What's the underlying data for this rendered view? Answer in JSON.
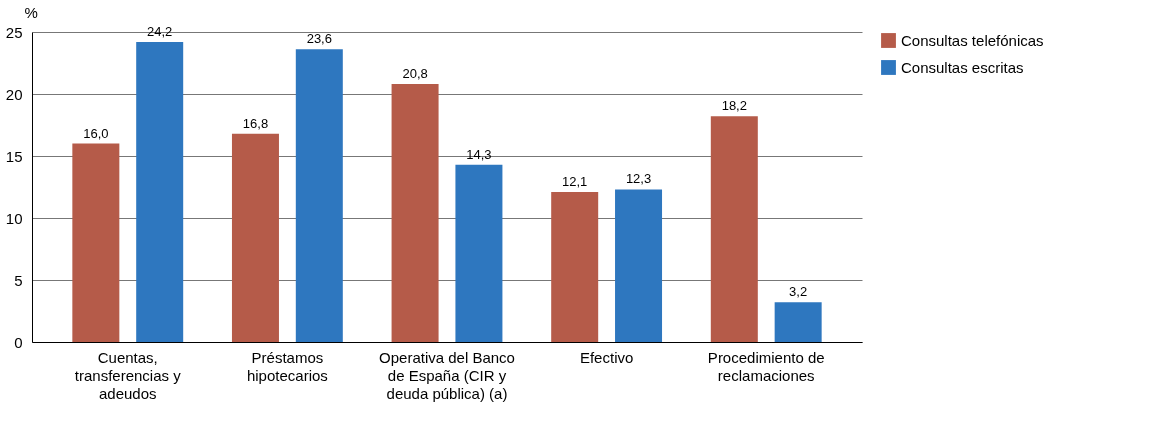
{
  "chart_data": {
    "type": "bar",
    "ylabel": "%",
    "categories": [
      "Cuentas, transferencias y adeudos",
      "Préstamos hipotecarios",
      "Operativa del Banco de España (CIR y deuda pública) (a)",
      "Efectivo",
      "Procedimiento de reclamaciones"
    ],
    "series": [
      {
        "name": "Consultas telefónicas",
        "color": "#b55b49",
        "values": [
          16.0,
          16.8,
          20.8,
          12.1,
          18.2
        ],
        "value_labels": [
          "16,0",
          "16,8",
          "20,8",
          "12,1",
          "18,2"
        ]
      },
      {
        "name": "Consultas escritas",
        "color": "#2e77bf",
        "values": [
          24.2,
          23.6,
          14.3,
          12.3,
          3.2
        ],
        "value_labels": [
          "24,2",
          "23,6",
          "14,3",
          "12,3",
          "3,2"
        ]
      }
    ],
    "ylim": [
      0,
      25
    ],
    "yticks": [
      0,
      5,
      10,
      15,
      20,
      25
    ],
    "grid": "y",
    "legend": "top right"
  }
}
